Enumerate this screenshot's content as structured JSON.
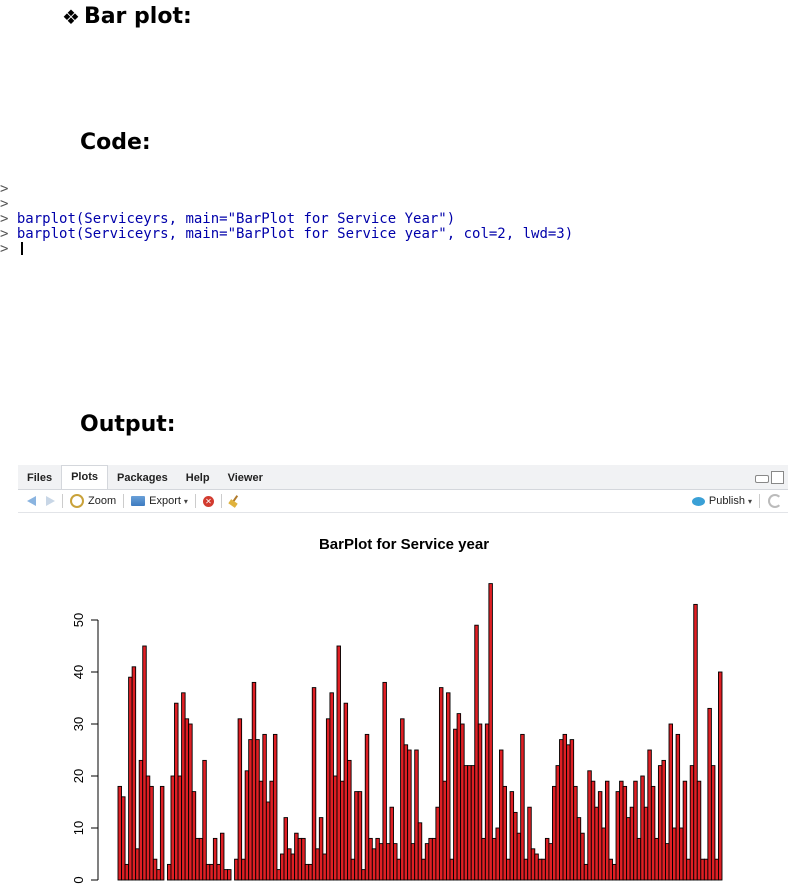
{
  "document": {
    "heading_glyph": "❖",
    "heading": "Bar plot:",
    "code_label": "Code:",
    "output_label": "Output:"
  },
  "console": {
    "lines": [
      {
        "prompt": ">",
        "text": ""
      },
      {
        "prompt": ">",
        "text": ""
      },
      {
        "prompt": ">",
        "text": " barplot(Serviceyrs, main=\"BarPlot for Service Year\")"
      },
      {
        "prompt": ">",
        "text": " barplot(Serviceyrs, main=\"BarPlot for Service year\", col=2, lwd=3)"
      },
      {
        "prompt": ">",
        "text": " "
      }
    ]
  },
  "rstudio": {
    "tabs": [
      {
        "label": "Files",
        "active": false
      },
      {
        "label": "Plots",
        "active": true
      },
      {
        "label": "Packages",
        "active": false
      },
      {
        "label": "Help",
        "active": false
      },
      {
        "label": "Viewer",
        "active": false
      }
    ],
    "toolbar": {
      "zoom_label": "Zoom",
      "export_label": "Export",
      "publish_label": "Publish",
      "caret_glyph": "▾",
      "remove_glyph": "✕"
    }
  },
  "chart_data": {
    "type": "bar",
    "title": "BarPlot for Service year",
    "xlabel": "",
    "ylabel": "",
    "ylim": [
      0,
      57
    ],
    "yticks": [
      0,
      10,
      20,
      30,
      40,
      50
    ],
    "bar_fill": "#df1f24",
    "bar_border": "#000000",
    "values": [
      18,
      16,
      3,
      39,
      41,
      6,
      23,
      45,
      20,
      18,
      4,
      2,
      18,
      0,
      3,
      20,
      34,
      20,
      36,
      31,
      30,
      17,
      8,
      8,
      23,
      3,
      3,
      8,
      3,
      9,
      2,
      2,
      0,
      4,
      31,
      4,
      21,
      27,
      38,
      27,
      19,
      28,
      15,
      19,
      28,
      2,
      5,
      12,
      6,
      5,
      9,
      8,
      8,
      3,
      3,
      37,
      6,
      12,
      5,
      31,
      36,
      20,
      45,
      19,
      34,
      23,
      4,
      17,
      17,
      2,
      28,
      8,
      6,
      8,
      7,
      38,
      7,
      14,
      7,
      4,
      31,
      26,
      25,
      7,
      25,
      11,
      4,
      7,
      8,
      8,
      14,
      37,
      19,
      36,
      4,
      29,
      32,
      30,
      22,
      22,
      22,
      49,
      30,
      8,
      30,
      57,
      8,
      10,
      25,
      18,
      4,
      17,
      13,
      9,
      28,
      4,
      14,
      6,
      5,
      4,
      4,
      8,
      7,
      18,
      22,
      27,
      28,
      26,
      27,
      18,
      12,
      9,
      3,
      21,
      19,
      14,
      17,
      10,
      19,
      4,
      3,
      17,
      19,
      18,
      12,
      14,
      19,
      8,
      20,
      14,
      25,
      18,
      8,
      22,
      23,
      7,
      30,
      10,
      28,
      10,
      19,
      4,
      22,
      53,
      19,
      4,
      4,
      33,
      22,
      4,
      40
    ]
  }
}
